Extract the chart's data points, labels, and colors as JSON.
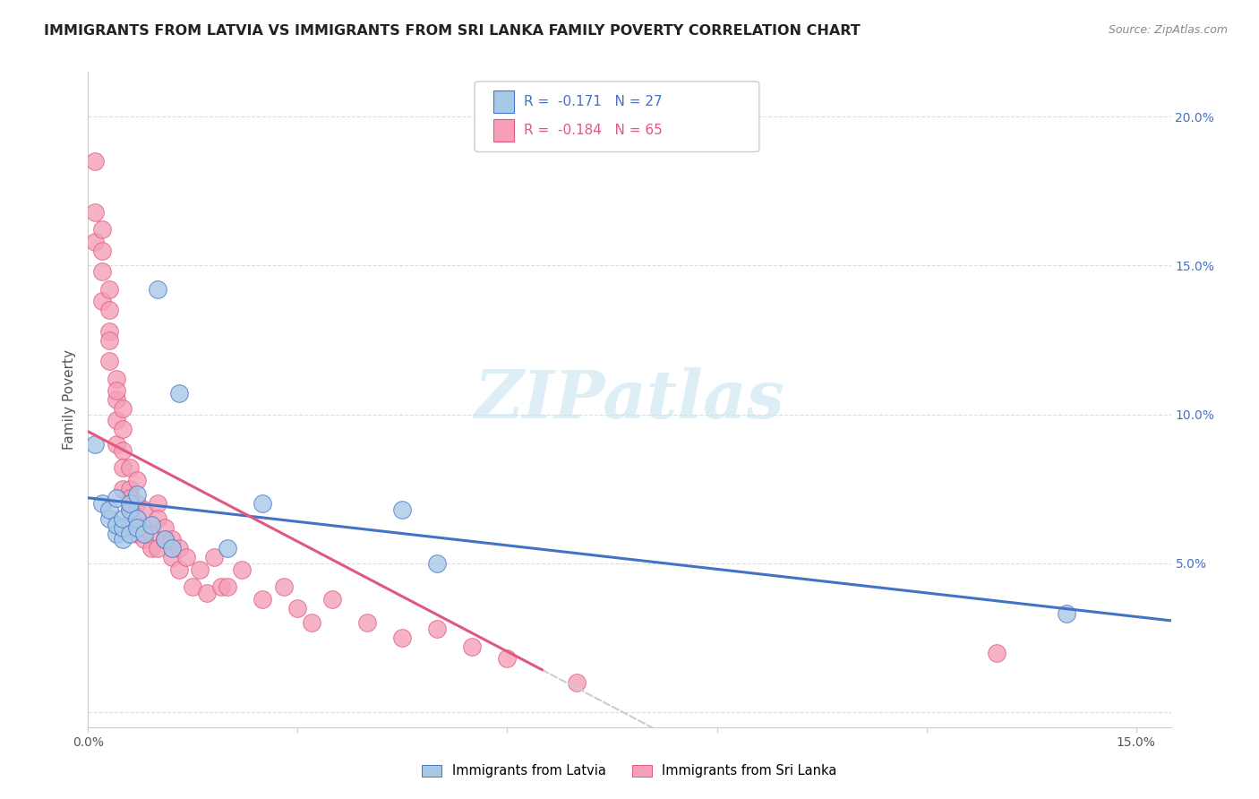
{
  "title": "IMMIGRANTS FROM LATVIA VS IMMIGRANTS FROM SRI LANKA FAMILY POVERTY CORRELATION CHART",
  "source": "Source: ZipAtlas.com",
  "ylabel": "Family Poverty",
  "xlim": [
    0.0,
    0.155
  ],
  "ylim": [
    -0.005,
    0.215
  ],
  "watermark": "ZIPatlas",
  "legend_latvia_r": "-0.171",
  "legend_latvia_n": "27",
  "legend_srilanka_r": "-0.184",
  "legend_srilanka_n": "65",
  "color_latvia": "#a8c8e8",
  "color_srilanka": "#f5a0b8",
  "color_line_latvia": "#4472c4",
  "color_line_srilanka": "#e05880",
  "latvia_x": [
    0.001,
    0.002,
    0.003,
    0.003,
    0.004,
    0.004,
    0.004,
    0.005,
    0.005,
    0.005,
    0.006,
    0.006,
    0.006,
    0.007,
    0.007,
    0.007,
    0.008,
    0.009,
    0.01,
    0.011,
    0.012,
    0.013,
    0.02,
    0.025,
    0.045,
    0.05,
    0.14
  ],
  "latvia_y": [
    0.09,
    0.07,
    0.065,
    0.068,
    0.06,
    0.063,
    0.072,
    0.058,
    0.062,
    0.065,
    0.068,
    0.07,
    0.06,
    0.073,
    0.065,
    0.062,
    0.06,
    0.063,
    0.142,
    0.058,
    0.055,
    0.107,
    0.055,
    0.07,
    0.068,
    0.05,
    0.033
  ],
  "srilanka_x": [
    0.001,
    0.001,
    0.001,
    0.002,
    0.002,
    0.002,
    0.002,
    0.003,
    0.003,
    0.003,
    0.003,
    0.003,
    0.004,
    0.004,
    0.004,
    0.004,
    0.004,
    0.005,
    0.005,
    0.005,
    0.005,
    0.005,
    0.006,
    0.006,
    0.006,
    0.006,
    0.006,
    0.007,
    0.007,
    0.007,
    0.007,
    0.008,
    0.008,
    0.008,
    0.009,
    0.009,
    0.01,
    0.01,
    0.01,
    0.011,
    0.011,
    0.012,
    0.012,
    0.013,
    0.013,
    0.014,
    0.015,
    0.016,
    0.017,
    0.018,
    0.019,
    0.02,
    0.022,
    0.025,
    0.028,
    0.03,
    0.032,
    0.035,
    0.04,
    0.045,
    0.05,
    0.055,
    0.06,
    0.07,
    0.13
  ],
  "srilanka_y": [
    0.185,
    0.168,
    0.158,
    0.162,
    0.155,
    0.148,
    0.138,
    0.142,
    0.135,
    0.128,
    0.118,
    0.125,
    0.112,
    0.105,
    0.098,
    0.09,
    0.108,
    0.095,
    0.102,
    0.088,
    0.082,
    0.075,
    0.082,
    0.075,
    0.068,
    0.072,
    0.062,
    0.078,
    0.07,
    0.065,
    0.06,
    0.068,
    0.062,
    0.058,
    0.06,
    0.055,
    0.07,
    0.065,
    0.055,
    0.058,
    0.062,
    0.052,
    0.058,
    0.048,
    0.055,
    0.052,
    0.042,
    0.048,
    0.04,
    0.052,
    0.042,
    0.042,
    0.048,
    0.038,
    0.042,
    0.035,
    0.03,
    0.038,
    0.03,
    0.025,
    0.028,
    0.022,
    0.018,
    0.01,
    0.02
  ],
  "legend_label_latvia": "Immigrants from Latvia",
  "legend_label_srilanka": "Immigrants from Sri Lanka",
  "background_color": "#ffffff",
  "grid_color": "#dddddd",
  "title_fontsize": 11.5,
  "source_fontsize": 9
}
